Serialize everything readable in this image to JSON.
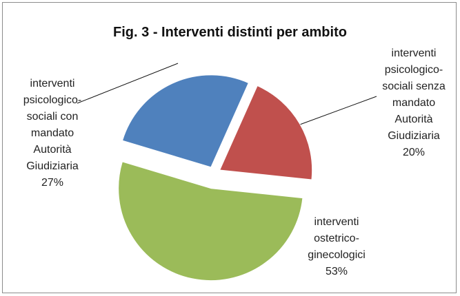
{
  "chart_data": {
    "type": "pie",
    "title": "Fig. 3 - Interventi distinti per ambito",
    "categories": [
      "interventi psicologico-sociali senza mandato Autorità Giudiziaria",
      "interventi ostetrico-ginecologici",
      "interventi psicologico-sociali con mandato Autorità Giudiziaria"
    ],
    "values": [
      20,
      53,
      27
    ],
    "value_labels": [
      "20%",
      "53%",
      "27%"
    ],
    "colors": [
      "#c0504d",
      "#9bbb59",
      "#4f81bd"
    ]
  }
}
